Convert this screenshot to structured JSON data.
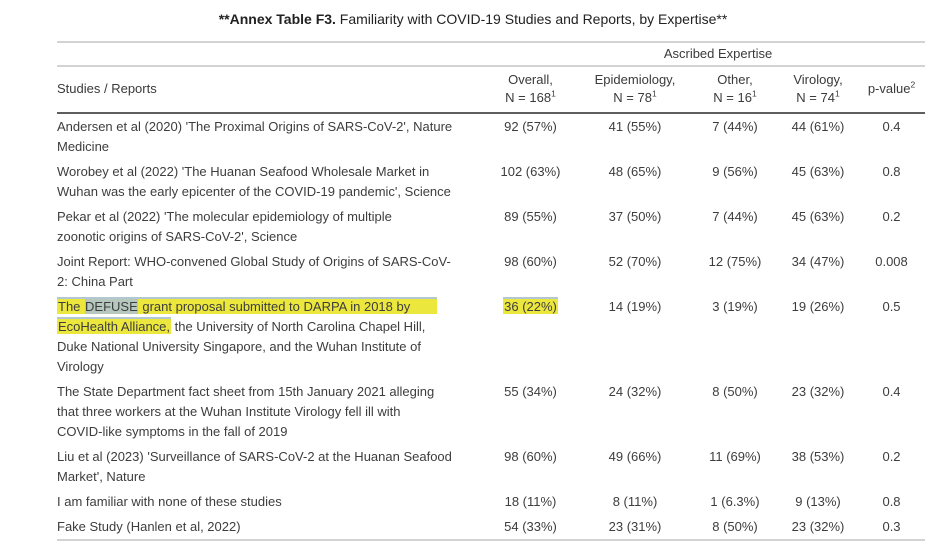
{
  "title": {
    "prefix_bold": "**Annex Table F3.",
    "rest": " Familiarity with COVID-19 Studies and Reports, by Expertise**"
  },
  "colors": {
    "highlight_yellow": "#ece73d",
    "highlight_selected_word": "#b6c8bd",
    "highlight_top_edge": "#b3c7d1",
    "rule_light": "#d3d3d3",
    "rule_dark": "#5f5f5f",
    "text": "#3d3d3d"
  },
  "table": {
    "spanner": "Ascribed Expertise",
    "stub_header": "Studies / Reports",
    "columns": [
      {
        "key": "overall",
        "line1": "Overall,",
        "line2": "N = 168",
        "footnote": "1"
      },
      {
        "key": "epidemiology",
        "line1": "Epidemiology,",
        "line2": "N = 78",
        "footnote": "1"
      },
      {
        "key": "other",
        "line1": "Other,",
        "line2": "N = 16",
        "footnote": "1"
      },
      {
        "key": "virology",
        "line1": "Virology,",
        "line2": "N = 74",
        "footnote": "1"
      }
    ],
    "pvalue_header": {
      "label": "p-value",
      "footnote": "2"
    },
    "value_column_keys": [
      "overall",
      "epidemiology",
      "other",
      "virology",
      "pvalue"
    ],
    "rows": [
      {
        "label_lines": [
          [
            {
              "text": "Andersen et al (2020) 'The Proximal Origins of SARS-CoV-2', Nature"
            }
          ],
          [
            {
              "text": "Medicine"
            }
          ]
        ],
        "values": [
          {
            "text": "92 (57%)"
          },
          {
            "text": "41 (55%)"
          },
          {
            "text": "7 (44%)"
          },
          {
            "text": "44 (61%)"
          },
          {
            "text": "0.4"
          }
        ]
      },
      {
        "label_lines": [
          [
            {
              "text": "Worobey et al (2022) 'The Huanan Seafood Wholesale Market in"
            }
          ],
          [
            {
              "text": "Wuhan was the early epicenter of the COVID-19 pandemic', Science"
            }
          ]
        ],
        "values": [
          {
            "text": "102 (63%)"
          },
          {
            "text": "48 (65%)"
          },
          {
            "text": "9 (56%)"
          },
          {
            "text": "45 (63%)"
          },
          {
            "text": "0.8"
          }
        ]
      },
      {
        "label_lines": [
          [
            {
              "text": "Pekar et al (2022) 'The molecular epidemiology of multiple"
            }
          ],
          [
            {
              "text": "zoonotic origins of SARS-CoV-2', Science"
            }
          ]
        ],
        "values": [
          {
            "text": "89 (55%)"
          },
          {
            "text": "37 (50%)"
          },
          {
            "text": "7 (44%)"
          },
          {
            "text": "45 (63%)"
          },
          {
            "text": "0.2"
          }
        ]
      },
      {
        "label_lines": [
          [
            {
              "text": "Joint Report: WHO-convened Global Study of Origins of SARS-CoV-"
            }
          ],
          [
            {
              "text": "2: China Part"
            }
          ]
        ],
        "values": [
          {
            "text": "98 (60%)"
          },
          {
            "text": "52 (70%)"
          },
          {
            "text": "12 (75%)"
          },
          {
            "text": "34 (47%)"
          },
          {
            "text": "0.008"
          }
        ]
      },
      {
        "label_lines": [
          [
            {
              "text": "The ",
              "highlight": "yellow"
            },
            {
              "text": "DEFUSE",
              "highlight": "selected"
            },
            {
              "text": " grant proposal submitted to DARPA in 2018 by",
              "highlight": "yellow",
              "extend": true
            }
          ],
          [
            {
              "text": "EcoHealth Alliance,",
              "highlight": "yellow"
            },
            {
              "text": " the University of North Carolina Chapel Hill,"
            }
          ],
          [
            {
              "text": "Duke National University Singapore, and the Wuhan Institute of"
            }
          ],
          [
            {
              "text": "Virology"
            }
          ]
        ],
        "values": [
          {
            "text": "36 (22%)",
            "highlight": "yellow"
          },
          {
            "text": "14 (19%)"
          },
          {
            "text": "3 (19%)"
          },
          {
            "text": "19 (26%)"
          },
          {
            "text": "0.5"
          }
        ]
      },
      {
        "label_lines": [
          [
            {
              "text": "The State Department fact sheet from 15th January 2021 alleging"
            }
          ],
          [
            {
              "text": "that three workers at the Wuhan Institute Virology fell ill with"
            }
          ],
          [
            {
              "text": "COVID-like symptoms in the fall of 2019"
            }
          ]
        ],
        "values": [
          {
            "text": "55 (34%)"
          },
          {
            "text": "24 (32%)"
          },
          {
            "text": "8 (50%)"
          },
          {
            "text": "23 (32%)"
          },
          {
            "text": "0.4"
          }
        ]
      },
      {
        "label_lines": [
          [
            {
              "text": "Liu et al (2023) 'Surveillance of SARS-CoV-2 at the Huanan Seafood"
            }
          ],
          [
            {
              "text": "Market', Nature"
            }
          ]
        ],
        "values": [
          {
            "text": "98 (60%)"
          },
          {
            "text": "49 (66%)"
          },
          {
            "text": "11 (69%)"
          },
          {
            "text": "38 (53%)"
          },
          {
            "text": "0.2"
          }
        ]
      },
      {
        "label_lines": [
          [
            {
              "text": "I am familiar with none of these studies"
            }
          ]
        ],
        "values": [
          {
            "text": "18 (11%)"
          },
          {
            "text": "8 (11%)"
          },
          {
            "text": "1 (6.3%)"
          },
          {
            "text": "9 (13%)"
          },
          {
            "text": "0.8"
          }
        ]
      },
      {
        "label_lines": [
          [
            {
              "text": "Fake Study (Hanlen et al, 2022)"
            }
          ]
        ],
        "values": [
          {
            "text": "54 (33%)"
          },
          {
            "text": "23 (31%)"
          },
          {
            "text": "8 (50%)"
          },
          {
            "text": "23 (32%)"
          },
          {
            "text": "0.3"
          }
        ]
      }
    ]
  }
}
